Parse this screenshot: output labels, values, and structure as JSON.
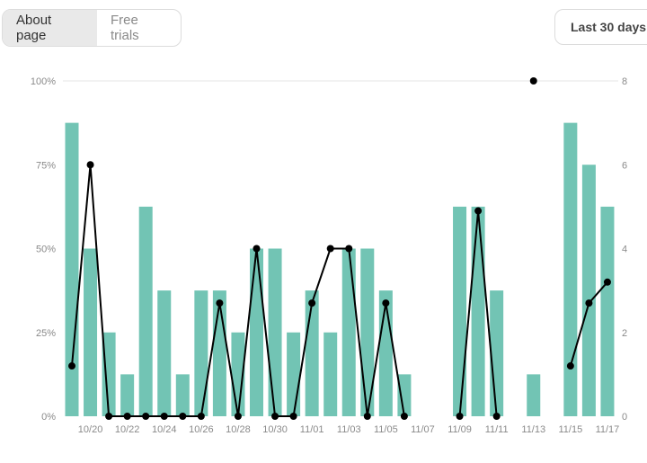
{
  "tabs": [
    {
      "label": "About page",
      "active": true
    },
    {
      "label": "Free trials",
      "active": false
    }
  ],
  "range_button": {
    "label": "Last 30 days"
  },
  "colors": {
    "bar": "#72c4b4",
    "line": "#000000",
    "grid": "#e6e6e6",
    "tick": "#8a8a8a"
  },
  "chart_data": {
    "type": "bar",
    "categories": [
      "10/19",
      "10/20",
      "10/21",
      "10/22",
      "10/23",
      "10/24",
      "10/25",
      "10/26",
      "10/27",
      "10/28",
      "10/29",
      "10/30",
      "10/31",
      "11/01",
      "11/02",
      "11/03",
      "11/04",
      "11/05",
      "11/06",
      "11/07",
      "11/08",
      "11/09",
      "11/10",
      "11/11",
      "11/12",
      "11/13",
      "11/14",
      "11/15",
      "11/16",
      "11/17"
    ],
    "x_tick_labels": [
      "10/20",
      "10/22",
      "10/24",
      "10/26",
      "10/28",
      "10/30",
      "11/01",
      "11/03",
      "11/05",
      "11/07",
      "11/09",
      "11/11",
      "11/13",
      "11/15",
      "11/17"
    ],
    "series": [
      {
        "kind": "bar",
        "axis": "left",
        "values": [
          87.5,
          50,
          25,
          12.5,
          62.5,
          37.5,
          12.5,
          37.5,
          37.5,
          25,
          50,
          50,
          25,
          37.5,
          25,
          50,
          50,
          37.5,
          12.5,
          null,
          null,
          62.5,
          62.5,
          37.5,
          null,
          12.5,
          null,
          87.5,
          75,
          62.5
        ]
      },
      {
        "kind": "line",
        "axis": "right",
        "values": [
          1.2,
          6,
          0,
          0,
          0,
          0,
          0,
          0,
          2.7,
          0,
          4,
          0,
          0,
          2.7,
          4,
          4,
          0,
          2.7,
          0,
          null,
          null,
          0,
          4.9,
          0,
          null,
          8,
          null,
          1.2,
          2.7,
          3.2
        ]
      }
    ],
    "y_left": {
      "ticks": [
        "0%",
        "25%",
        "50%",
        "75%",
        "100%"
      ],
      "range": [
        0,
        100
      ]
    },
    "y_right": {
      "ticks": [
        "0",
        "2",
        "4",
        "6",
        "8"
      ],
      "range": [
        0,
        8
      ]
    },
    "grid": "top line only",
    "legend": "none"
  }
}
